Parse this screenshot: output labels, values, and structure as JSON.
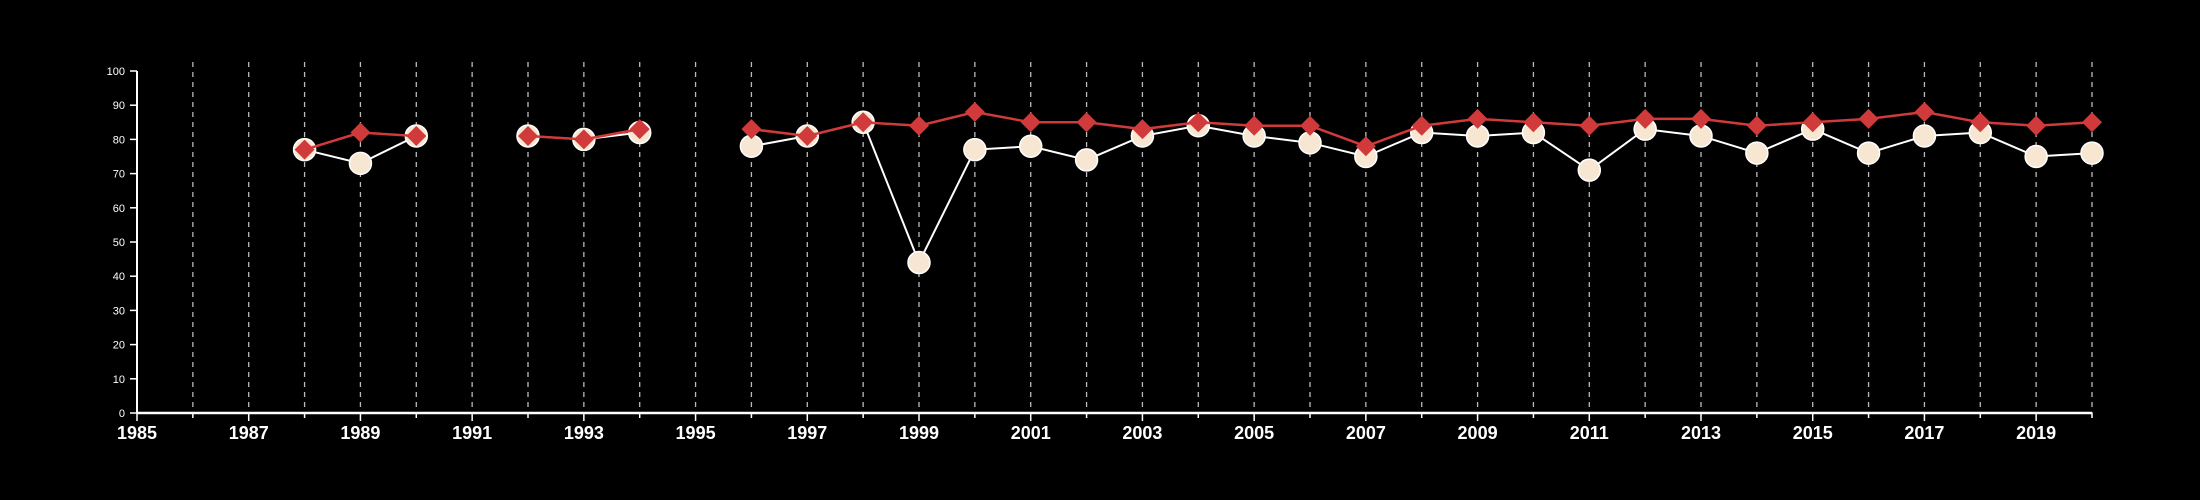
{
  "chart_data": {
    "type": "line",
    "title": "",
    "xlabel": "",
    "ylabel": "",
    "xlim": [
      1985,
      2020
    ],
    "ylim": [
      0,
      100
    ],
    "xticks": [
      "1985",
      "1987",
      "1989",
      "1991",
      "1993",
      "1995",
      "1997",
      "1999",
      "2001",
      "2003",
      "2005",
      "2007",
      "2009",
      "2011",
      "2013",
      "2015",
      "2017",
      "2019"
    ],
    "yticks": [
      "0",
      "10",
      "20",
      "30",
      "40",
      "50",
      "60",
      "70",
      "80",
      "90",
      "100"
    ],
    "vertical_grid": "dashed, every year",
    "colors": {
      "background": "#000000",
      "axis": "#ffffff",
      "grid": "#bbbbbb",
      "series_red": "#d03a3a",
      "series_cream": "#f7e6d2"
    },
    "series": [
      {
        "marker": "circle",
        "color": "#f7e6d2",
        "x": [
          1988,
          1989,
          1990,
          1992,
          1993,
          1994,
          1996,
          1997,
          1998,
          1999,
          2000,
          2001,
          2002,
          2003,
          2004,
          2005,
          2006,
          2007,
          2008,
          2009,
          2010,
          2011,
          2012,
          2013,
          2014,
          2015,
          2016,
          2017,
          2018,
          2019,
          2020
        ],
        "y": [
          77,
          73,
          81,
          81,
          80,
          82,
          78,
          81,
          85,
          44,
          77,
          78,
          74,
          81,
          84,
          81,
          79,
          75,
          82,
          81,
          82,
          71,
          83,
          81,
          76,
          83,
          76,
          81,
          82,
          75,
          76
        ]
      },
      {
        "marker": "diamond",
        "color": "#d03a3a",
        "x": [
          1988,
          1989,
          1990,
          1992,
          1993,
          1994,
          1996,
          1997,
          1998,
          1999,
          2000,
          2001,
          2002,
          2003,
          2004,
          2005,
          2006,
          2007,
          2008,
          2009,
          2010,
          2011,
          2012,
          2013,
          2014,
          2015,
          2016,
          2017,
          2018,
          2019,
          2020
        ],
        "y": [
          77,
          82,
          81,
          81,
          80,
          83,
          83,
          81,
          85,
          84,
          88,
          85,
          85,
          83,
          85,
          84,
          84,
          78,
          84,
          86,
          85,
          84,
          86,
          86,
          84,
          85,
          86,
          88,
          85,
          84,
          85
        ]
      }
    ]
  }
}
